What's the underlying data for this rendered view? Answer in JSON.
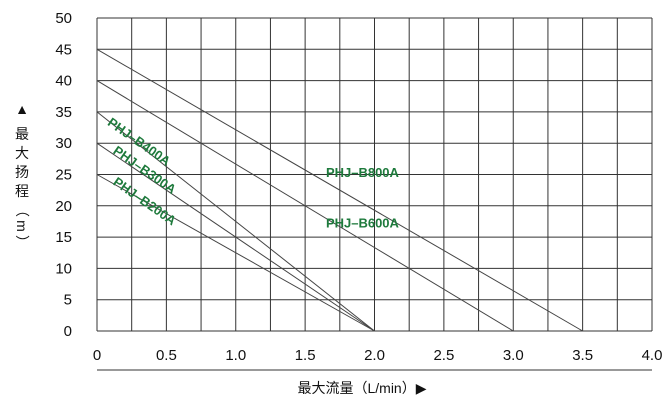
{
  "chart_data": {
    "type": "line",
    "title": "",
    "xlabel": "最大流量（L/min）▶",
    "ylabel": "▲ 最大扬程（m）",
    "xlim": [
      0,
      4.0
    ],
    "ylim": [
      0,
      50
    ],
    "x_ticks": [
      "0",
      "0.5",
      "1.0",
      "1.5",
      "2.0",
      "2.5",
      "3.0",
      "3.5",
      "4.0"
    ],
    "y_ticks": [
      "0",
      "5",
      "10",
      "15",
      "20",
      "25",
      "30",
      "35",
      "40",
      "45",
      "50"
    ],
    "grid": true,
    "colors": {
      "grid": "#333333",
      "line": "#444444",
      "label": "#1e7a3c"
    },
    "series": [
      {
        "name": "PHJ–B800A",
        "x": [
          0,
          3.5
        ],
        "y": [
          45,
          0
        ],
        "label_at": [
          1.65,
          24.6
        ],
        "label_angle": 0
      },
      {
        "name": "PHJ–B600A",
        "x": [
          0,
          3.0
        ],
        "y": [
          40,
          0
        ],
        "label_at": [
          1.65,
          16.5
        ],
        "label_angle": 0
      },
      {
        "name": "PHJ–B400A",
        "x": [
          0,
          2.0
        ],
        "y": [
          35,
          0
        ],
        "label_at": [
          0.07,
          33.0
        ],
        "label_angle": 35
      },
      {
        "name": "PHJ–B300A",
        "x": [
          0,
          2.0
        ],
        "y": [
          30,
          0
        ],
        "label_at": [
          0.11,
          28.5
        ],
        "label_angle": 35
      },
      {
        "name": "PHJ–B200A",
        "x": [
          0,
          2.0
        ],
        "y": [
          25,
          0
        ],
        "label_at": [
          0.11,
          23.5
        ],
        "label_angle": 35
      }
    ]
  }
}
